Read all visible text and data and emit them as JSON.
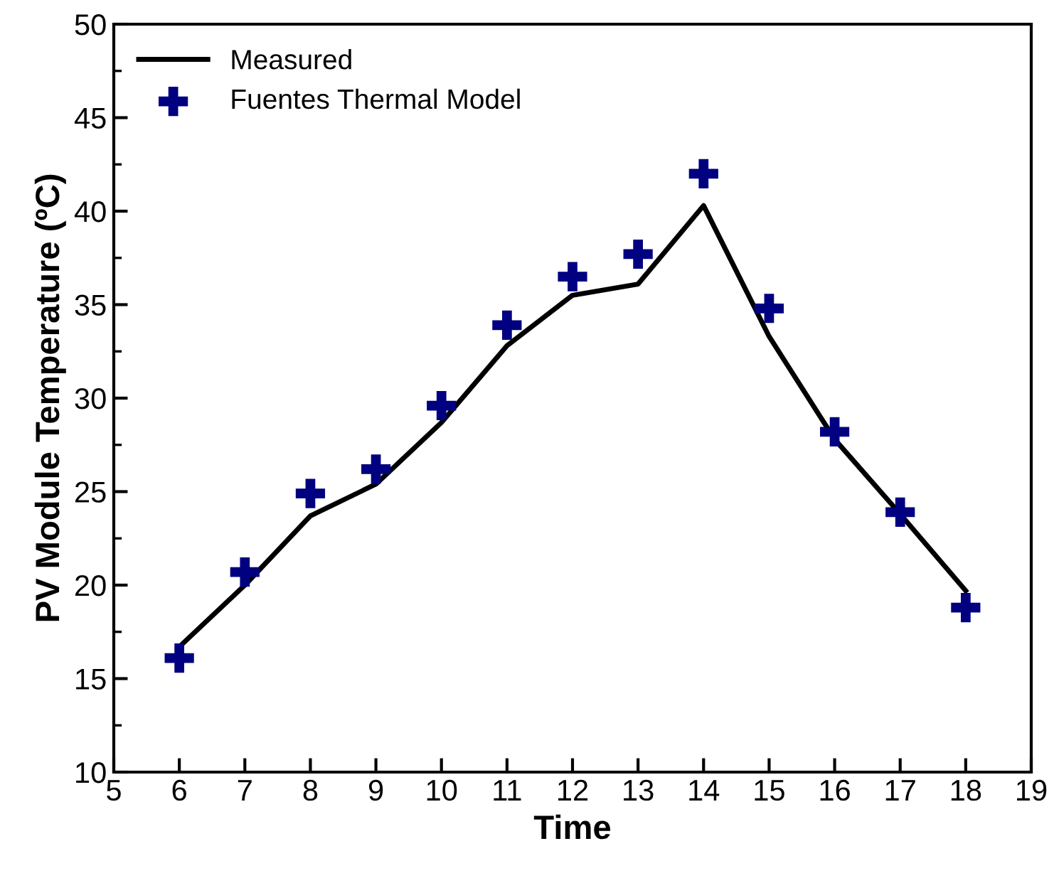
{
  "chart_data": {
    "type": "line",
    "xlabel": "Time",
    "ylabel": "PV Module Temperature (ºC)",
    "x": [
      6,
      7,
      8,
      9,
      10,
      11,
      12,
      13,
      14,
      15,
      16,
      17,
      18
    ],
    "series": [
      {
        "name": "Measured",
        "color": "#000000",
        "marker": "none",
        "line_style": "solid",
        "values": [
          16.7,
          20.0,
          23.7,
          25.4,
          28.7,
          32.8,
          35.5,
          36.1,
          40.3,
          33.3,
          27.8,
          23.8,
          19.7
        ]
      },
      {
        "name": "Fuentes Thermal Model",
        "type": "scatter",
        "color": "#000080",
        "marker": "cross",
        "values": [
          16.1,
          20.7,
          24.9,
          26.2,
          29.6,
          33.9,
          36.5,
          37.7,
          42.0,
          34.8,
          28.2,
          23.9,
          18.8
        ]
      }
    ],
    "xlim": [
      5,
      19
    ],
    "xticks": [
      5,
      6,
      7,
      8,
      9,
      10,
      11,
      12,
      13,
      14,
      15,
      16,
      17,
      18,
      19
    ],
    "ylim": [
      10,
      50
    ],
    "yticks": [
      10,
      15,
      20,
      25,
      30,
      35,
      40,
      45,
      50
    ],
    "grid": false,
    "legend": "top left"
  }
}
